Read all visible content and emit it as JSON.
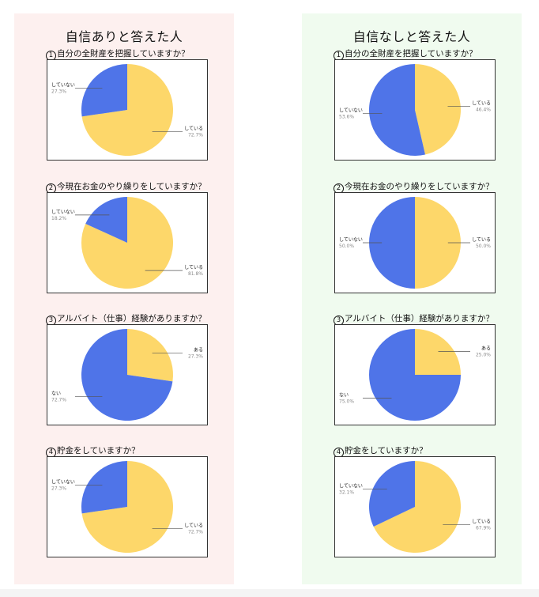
{
  "colors": {
    "yellow": "#fdd76a",
    "blue": "#4f74e8",
    "leader": "#555555",
    "pct": "#8a8a8a"
  },
  "panels": [
    {
      "title": "自信ありと答えた人",
      "questions": [
        {
          "num": "1",
          "text": "自分の全財産を把握していますか？",
          "chart_data": {
            "type": "pie",
            "start": "yellow",
            "slices": [
              {
                "label": "している",
                "value": 72.7,
                "pct": "72.7%",
                "color": "yellow"
              },
              {
                "label": "していない",
                "value": 27.3,
                "pct": "27.3%",
                "color": "blue"
              }
            ]
          }
        },
        {
          "num": "2",
          "text": "今現在お金のやり繰りをしていますか？",
          "chart_data": {
            "type": "pie",
            "start": "yellow",
            "slices": [
              {
                "label": "している",
                "value": 81.8,
                "pct": "81.8%",
                "color": "yellow"
              },
              {
                "label": "していない",
                "value": 18.2,
                "pct": "18.2%",
                "color": "blue"
              }
            ]
          }
        },
        {
          "num": "3",
          "text": "アルバイト（仕事）経験がありますか？",
          "chart_data": {
            "type": "pie",
            "start": "yellow",
            "slices": [
              {
                "label": "ある",
                "value": 27.3,
                "pct": "27.3%",
                "color": "yellow"
              },
              {
                "label": "ない",
                "value": 72.7,
                "pct": "72.7%",
                "color": "blue"
              }
            ]
          }
        },
        {
          "num": "4",
          "text": "貯金をしていますか？",
          "chart_data": {
            "type": "pie",
            "start": "yellow",
            "slices": [
              {
                "label": "している",
                "value": 72.7,
                "pct": "72.7%",
                "color": "yellow"
              },
              {
                "label": "していない",
                "value": 27.3,
                "pct": "27.3%",
                "color": "blue"
              }
            ]
          }
        }
      ]
    },
    {
      "title": "自信なしと答えた人",
      "questions": [
        {
          "num": "1",
          "text": "自分の全財産を把握していますか？",
          "chart_data": {
            "type": "pie",
            "start": "yellow",
            "slices": [
              {
                "label": "している",
                "value": 46.4,
                "pct": "46.4%",
                "color": "yellow"
              },
              {
                "label": "していない",
                "value": 53.6,
                "pct": "53.6%",
                "color": "blue"
              }
            ]
          }
        },
        {
          "num": "2",
          "text": "今現在お金のやり繰りをしていますか？",
          "chart_data": {
            "type": "pie",
            "start": "yellow",
            "slices": [
              {
                "label": "している",
                "value": 50.0,
                "pct": "50.0%",
                "color": "yellow"
              },
              {
                "label": "していない",
                "value": 50.0,
                "pct": "50.0%",
                "color": "blue"
              }
            ]
          }
        },
        {
          "num": "3",
          "text": "アルバイト（仕事）経験がありますか？",
          "chart_data": {
            "type": "pie",
            "start": "yellow",
            "slices": [
              {
                "label": "ある",
                "value": 25.0,
                "pct": "25.0%",
                "color": "yellow"
              },
              {
                "label": "ない",
                "value": 75.0,
                "pct": "75.0%",
                "color": "blue"
              }
            ]
          }
        },
        {
          "num": "4",
          "text": "貯金をしていますか？",
          "chart_data": {
            "type": "pie",
            "start": "yellow",
            "slices": [
              {
                "label": "している",
                "value": 67.9,
                "pct": "67.9%",
                "color": "yellow"
              },
              {
                "label": "していない",
                "value": 32.1,
                "pct": "32.1%",
                "color": "blue"
              }
            ]
          }
        }
      ]
    }
  ]
}
